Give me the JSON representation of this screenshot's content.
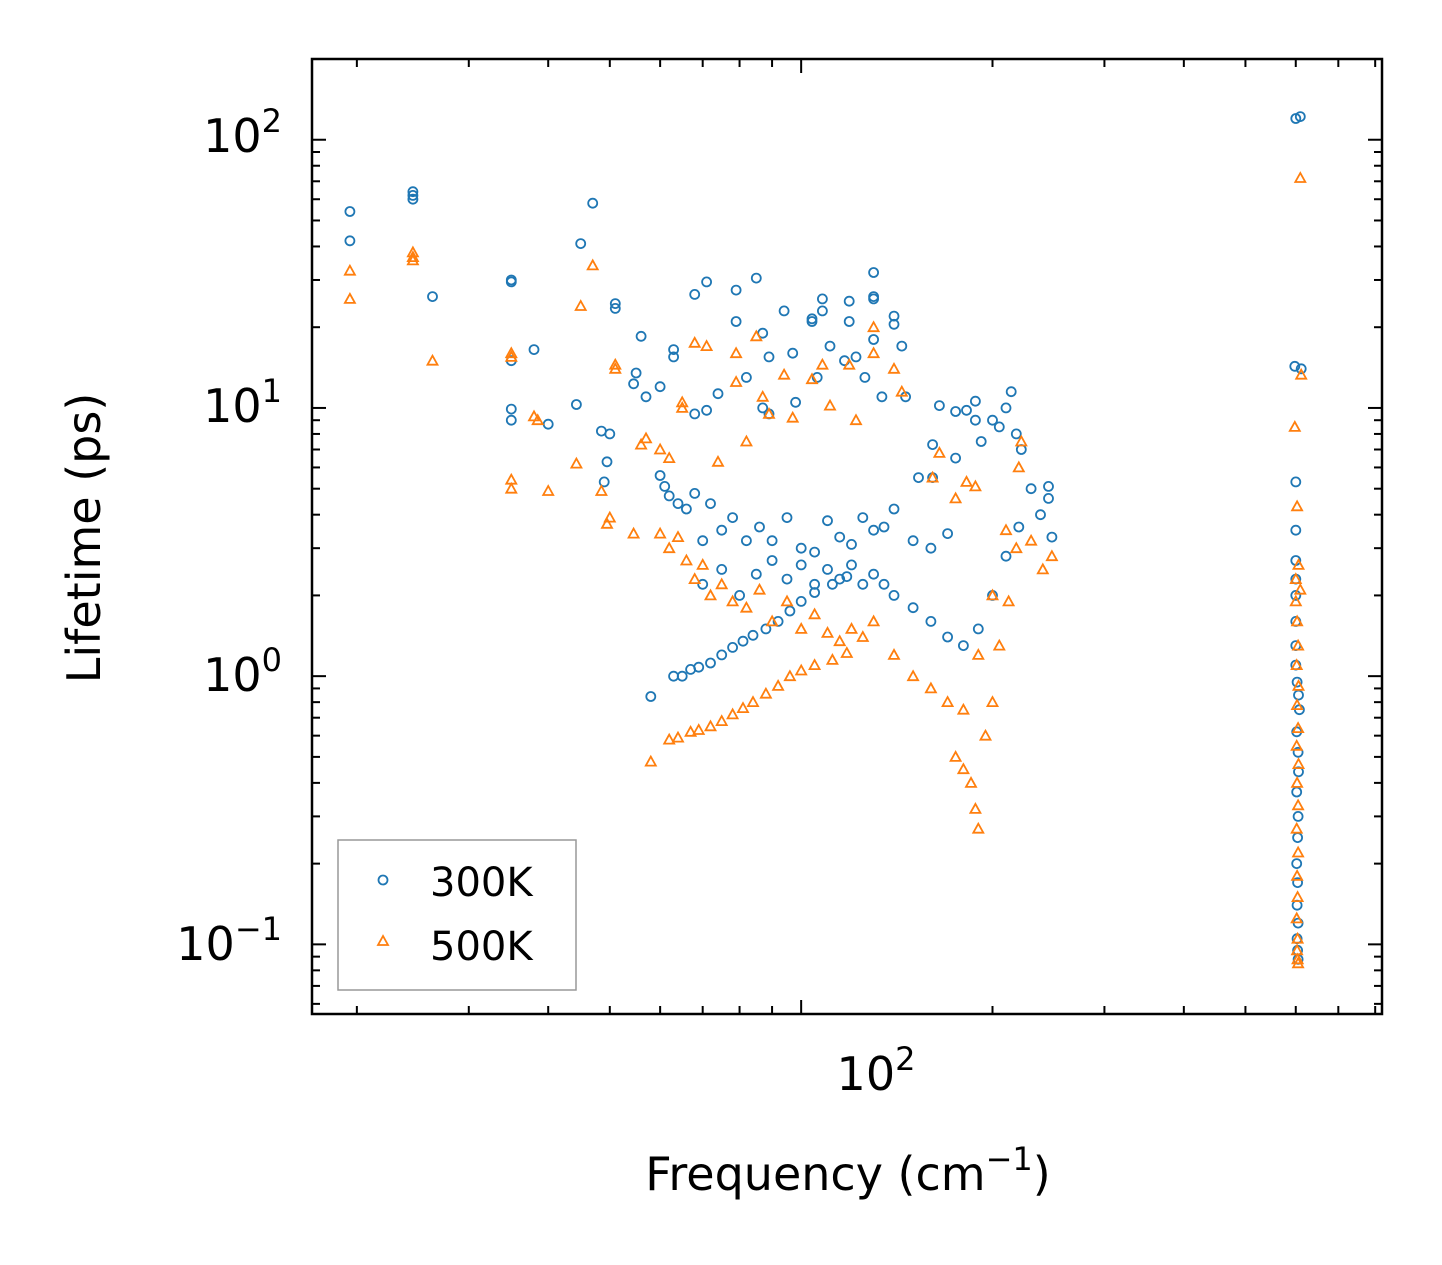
{
  "chart_data": {
    "type": "scatter",
    "xscale": "log",
    "yscale": "log",
    "xlim": [
      17,
      820
    ],
    "ylim": [
      0.055,
      200
    ],
    "xlabel": "Frequency (cm",
    "xlabel_sup": "−1",
    "xlabel_end": ")",
    "ylabel": "Lifetime (ps)",
    "xticks": [
      {
        "base": "10",
        "exp": "2",
        "value": 100
      }
    ],
    "yticks": [
      {
        "base": "10",
        "exp": "2",
        "value": 100
      },
      {
        "base": "10",
        "exp": "1",
        "value": 10
      },
      {
        "base": "10",
        "exp": "0",
        "value": 1
      },
      {
        "base": "10",
        "exp": "−1",
        "value": 0.1
      }
    ],
    "legend_position": "lower-left",
    "series": [
      {
        "name": "300K",
        "marker": "circle",
        "color": "#1f77b4",
        "points": [
          [
            19.5,
            54
          ],
          [
            19.5,
            42
          ],
          [
            24.5,
            64
          ],
          [
            24.5,
            62
          ],
          [
            24.5,
            60
          ],
          [
            26.3,
            26
          ],
          [
            35,
            30
          ],
          [
            35,
            29.5
          ],
          [
            35,
            15
          ],
          [
            35,
            9.9
          ],
          [
            35,
            9
          ],
          [
            38,
            16.5
          ],
          [
            40,
            8.7
          ],
          [
            45,
            41
          ],
          [
            44.3,
            10.3
          ],
          [
            47,
            58
          ],
          [
            48.5,
            8.2
          ],
          [
            50,
            8
          ],
          [
            49.5,
            6.3
          ],
          [
            49,
            5.3
          ],
          [
            51,
            24.5
          ],
          [
            51,
            23.5
          ],
          [
            56,
            18.5
          ],
          [
            54.5,
            12.3
          ],
          [
            55,
            13.5
          ],
          [
            57,
            11
          ],
          [
            60,
            12
          ],
          [
            63,
            16.5
          ],
          [
            63,
            15.5
          ],
          [
            68,
            26.5
          ],
          [
            68,
            9.5
          ],
          [
            71,
            29.5
          ],
          [
            71,
            9.8
          ],
          [
            74,
            11.3
          ],
          [
            79,
            27.5
          ],
          [
            79,
            21
          ],
          [
            82,
            13
          ],
          [
            85,
            30.5
          ],
          [
            87,
            19
          ],
          [
            89,
            15.5
          ],
          [
            87,
            10
          ],
          [
            89,
            9.5
          ],
          [
            94,
            23
          ],
          [
            97,
            16
          ],
          [
            98,
            10.5
          ],
          [
            104,
            21
          ],
          [
            104,
            21.5
          ],
          [
            108,
            25.5
          ],
          [
            108,
            23
          ],
          [
            111,
            17
          ],
          [
            106,
            13
          ],
          [
            117,
            15
          ],
          [
            119,
            25
          ],
          [
            119,
            21
          ],
          [
            122,
            15.5
          ],
          [
            126,
            13
          ],
          [
            130,
            32
          ],
          [
            130,
            26
          ],
          [
            130,
            25.5
          ],
          [
            130,
            18
          ],
          [
            140,
            22
          ],
          [
            140,
            20.5
          ],
          [
            144,
            17
          ],
          [
            146,
            11
          ],
          [
            134,
            11
          ],
          [
            153,
            5.5
          ],
          [
            161,
            7.3
          ],
          [
            161,
            5.5
          ],
          [
            165,
            10.2
          ],
          [
            175,
            6.5
          ],
          [
            175,
            9.7
          ],
          [
            182,
            9.8
          ],
          [
            188,
            10.6
          ],
          [
            188,
            9
          ],
          [
            192,
            7.5
          ],
          [
            200,
            9
          ],
          [
            205,
            8.5
          ],
          [
            210,
            10
          ],
          [
            214,
            11.5
          ],
          [
            218,
            8
          ],
          [
            222,
            7
          ],
          [
            230,
            5
          ],
          [
            238,
            4
          ],
          [
            245,
            5.1
          ],
          [
            248,
            3.3
          ],
          [
            245,
            4.6
          ],
          [
            60,
            5.6
          ],
          [
            61,
            5.1
          ],
          [
            62,
            4.7
          ],
          [
            64,
            4.4
          ],
          [
            66,
            4.2
          ],
          [
            68,
            4.8
          ],
          [
            70,
            3.2
          ],
          [
            72,
            4.4
          ],
          [
            75,
            3.5
          ],
          [
            78,
            3.9
          ],
          [
            82,
            3.2
          ],
          [
            86,
            3.6
          ],
          [
            90,
            3.2
          ],
          [
            95,
            3.9
          ],
          [
            100,
            3.0
          ],
          [
            105,
            2.9
          ],
          [
            110,
            3.8
          ],
          [
            115,
            3.3
          ],
          [
            120,
            3.1
          ],
          [
            125,
            3.9
          ],
          [
            130,
            3.5
          ],
          [
            135,
            3.6
          ],
          [
            140,
            4.2
          ],
          [
            150,
            3.2
          ],
          [
            160,
            3.0
          ],
          [
            170,
            3.4
          ],
          [
            70,
            2.2
          ],
          [
            75,
            2.5
          ],
          [
            80,
            2.0
          ],
          [
            85,
            2.4
          ],
          [
            90,
            2.7
          ],
          [
            95,
            2.3
          ],
          [
            100,
            2.6
          ],
          [
            105,
            2.2
          ],
          [
            110,
            2.5
          ],
          [
            115,
            2.3
          ],
          [
            120,
            2.6
          ],
          [
            125,
            2.2
          ],
          [
            130,
            2.4
          ],
          [
            135,
            2.2
          ],
          [
            140,
            2.0
          ],
          [
            150,
            1.8
          ],
          [
            160,
            1.6
          ],
          [
            170,
            1.4
          ],
          [
            180,
            1.3
          ],
          [
            190,
            1.5
          ],
          [
            200,
            2.0
          ],
          [
            210,
            2.8
          ],
          [
            220,
            3.6
          ],
          [
            58,
            0.84
          ],
          [
            63,
            1.0
          ],
          [
            65,
            1.0
          ],
          [
            67,
            1.06
          ],
          [
            69,
            1.08
          ],
          [
            72,
            1.12
          ],
          [
            75,
            1.2
          ],
          [
            78,
            1.28
          ],
          [
            81,
            1.35
          ],
          [
            84,
            1.42
          ],
          [
            88,
            1.5
          ],
          [
            92,
            1.6
          ],
          [
            96,
            1.75
          ],
          [
            100,
            1.9
          ],
          [
            105,
            2.05
          ],
          [
            112,
            2.2
          ],
          [
            118,
            2.35
          ],
          [
            600,
            120
          ],
          [
            610,
            122
          ],
          [
            598,
            14.3
          ],
          [
            612,
            14.0
          ],
          [
            600,
            5.3
          ],
          [
            600,
            3.5
          ],
          [
            600,
            2.7
          ],
          [
            600,
            2.3
          ],
          [
            600,
            2.0
          ],
          [
            600,
            1.6
          ],
          [
            600,
            1.3
          ],
          [
            600,
            1.1
          ],
          [
            603,
            0.95
          ],
          [
            606,
            0.85
          ],
          [
            608,
            0.75
          ],
          [
            602,
            0.62
          ],
          [
            605,
            0.52
          ],
          [
            606,
            0.44
          ],
          [
            602,
            0.37
          ],
          [
            605,
            0.3
          ],
          [
            604,
            0.25
          ],
          [
            602,
            0.2
          ],
          [
            604,
            0.17
          ],
          [
            603,
            0.14
          ],
          [
            605,
            0.12
          ],
          [
            603,
            0.105
          ],
          [
            604,
            0.095
          ],
          [
            605,
            0.088
          ]
        ]
      },
      {
        "name": "500K",
        "marker": "triangle",
        "color": "#ff7f0e",
        "points": [
          [
            19.5,
            32.5
          ],
          [
            19.5,
            25.5
          ],
          [
            24.5,
            38
          ],
          [
            24.5,
            36.5
          ],
          [
            24.5,
            35.5
          ],
          [
            26.3,
            15
          ],
          [
            35,
            16
          ],
          [
            35,
            15.5
          ],
          [
            35,
            5.4
          ],
          [
            35,
            5.0
          ],
          [
            38,
            9.3
          ],
          [
            38.5,
            9.0
          ],
          [
            40,
            4.9
          ],
          [
            45,
            24
          ],
          [
            44.3,
            6.2
          ],
          [
            47,
            34
          ],
          [
            48.5,
            4.9
          ],
          [
            49.5,
            3.7
          ],
          [
            50,
            3.9
          ],
          [
            51,
            14.5
          ],
          [
            51,
            14
          ],
          [
            54.5,
            3.4
          ],
          [
            56,
            7.3
          ],
          [
            57,
            7.7
          ],
          [
            60,
            7
          ],
          [
            62,
            6.5
          ],
          [
            65,
            10
          ],
          [
            65,
            10.5
          ],
          [
            68,
            17.5
          ],
          [
            71,
            17
          ],
          [
            74,
            6.3
          ],
          [
            79,
            16
          ],
          [
            79,
            12.5
          ],
          [
            82,
            7.5
          ],
          [
            85,
            18.5
          ],
          [
            87,
            11
          ],
          [
            89,
            9.5
          ],
          [
            94,
            13.3
          ],
          [
            97,
            9.2
          ],
          [
            104,
            12.8
          ],
          [
            108,
            14.5
          ],
          [
            111,
            10.2
          ],
          [
            119,
            14.5
          ],
          [
            122,
            9
          ],
          [
            130,
            20
          ],
          [
            130,
            16
          ],
          [
            140,
            14
          ],
          [
            144,
            11.5
          ],
          [
            161,
            5.5
          ],
          [
            165,
            6.8
          ],
          [
            175,
            4.6
          ],
          [
            182,
            5.3
          ],
          [
            188,
            5.1
          ],
          [
            60,
            3.4
          ],
          [
            62,
            3.0
          ],
          [
            64,
            3.3
          ],
          [
            66,
            2.7
          ],
          [
            68,
            2.3
          ],
          [
            70,
            2.6
          ],
          [
            72,
            2.0
          ],
          [
            75,
            2.2
          ],
          [
            78,
            1.9
          ],
          [
            82,
            1.8
          ],
          [
            86,
            2.1
          ],
          [
            90,
            1.6
          ],
          [
            95,
            1.9
          ],
          [
            100,
            1.5
          ],
          [
            105,
            1.7
          ],
          [
            110,
            1.45
          ],
          [
            115,
            1.35
          ],
          [
            120,
            1.5
          ],
          [
            125,
            1.4
          ],
          [
            130,
            1.6
          ],
          [
            140,
            1.2
          ],
          [
            150,
            1.0
          ],
          [
            160,
            0.9
          ],
          [
            170,
            0.8
          ],
          [
            180,
            0.75
          ],
          [
            190,
            1.2
          ],
          [
            200,
            2.0
          ],
          [
            210,
            3.5
          ],
          [
            220,
            6.0
          ],
          [
            230,
            3.2
          ],
          [
            240,
            2.5
          ],
          [
            248,
            2.8
          ],
          [
            175,
            0.5
          ],
          [
            180,
            0.45
          ],
          [
            185,
            0.4
          ],
          [
            188,
            0.32
          ],
          [
            190,
            0.27
          ],
          [
            195,
            0.6
          ],
          [
            200,
            0.8
          ],
          [
            205,
            1.3
          ],
          [
            212,
            1.9
          ],
          [
            218,
            3.0
          ],
          [
            222,
            7.5
          ],
          [
            58,
            0.48
          ],
          [
            62,
            0.58
          ],
          [
            64,
            0.59
          ],
          [
            67,
            0.62
          ],
          [
            69,
            0.63
          ],
          [
            72,
            0.65
          ],
          [
            75,
            0.68
          ],
          [
            78,
            0.72
          ],
          [
            81,
            0.76
          ],
          [
            84,
            0.8
          ],
          [
            88,
            0.86
          ],
          [
            92,
            0.92
          ],
          [
            96,
            1.0
          ],
          [
            100,
            1.05
          ],
          [
            105,
            1.1
          ],
          [
            112,
            1.15
          ],
          [
            118,
            1.22
          ],
          [
            610,
            72
          ],
          [
            598,
            8.5
          ],
          [
            603,
            4.3
          ],
          [
            606,
            2.6
          ],
          [
            600,
            2.3
          ],
          [
            610,
            2.1
          ],
          [
            600,
            1.9
          ],
          [
            603,
            1.6
          ],
          [
            605,
            1.3
          ],
          [
            602,
            1.1
          ],
          [
            606,
            0.92
          ],
          [
            603,
            0.78
          ],
          [
            605,
            0.64
          ],
          [
            602,
            0.55
          ],
          [
            606,
            0.47
          ],
          [
            603,
            0.4
          ],
          [
            605,
            0.33
          ],
          [
            602,
            0.27
          ],
          [
            605,
            0.22
          ],
          [
            603,
            0.18
          ],
          [
            604,
            0.15
          ],
          [
            602,
            0.125
          ],
          [
            604,
            0.105
          ],
          [
            603,
            0.095
          ],
          [
            604,
            0.088
          ],
          [
            605,
            0.085
          ],
          [
            612,
            13.3
          ]
        ]
      }
    ]
  }
}
